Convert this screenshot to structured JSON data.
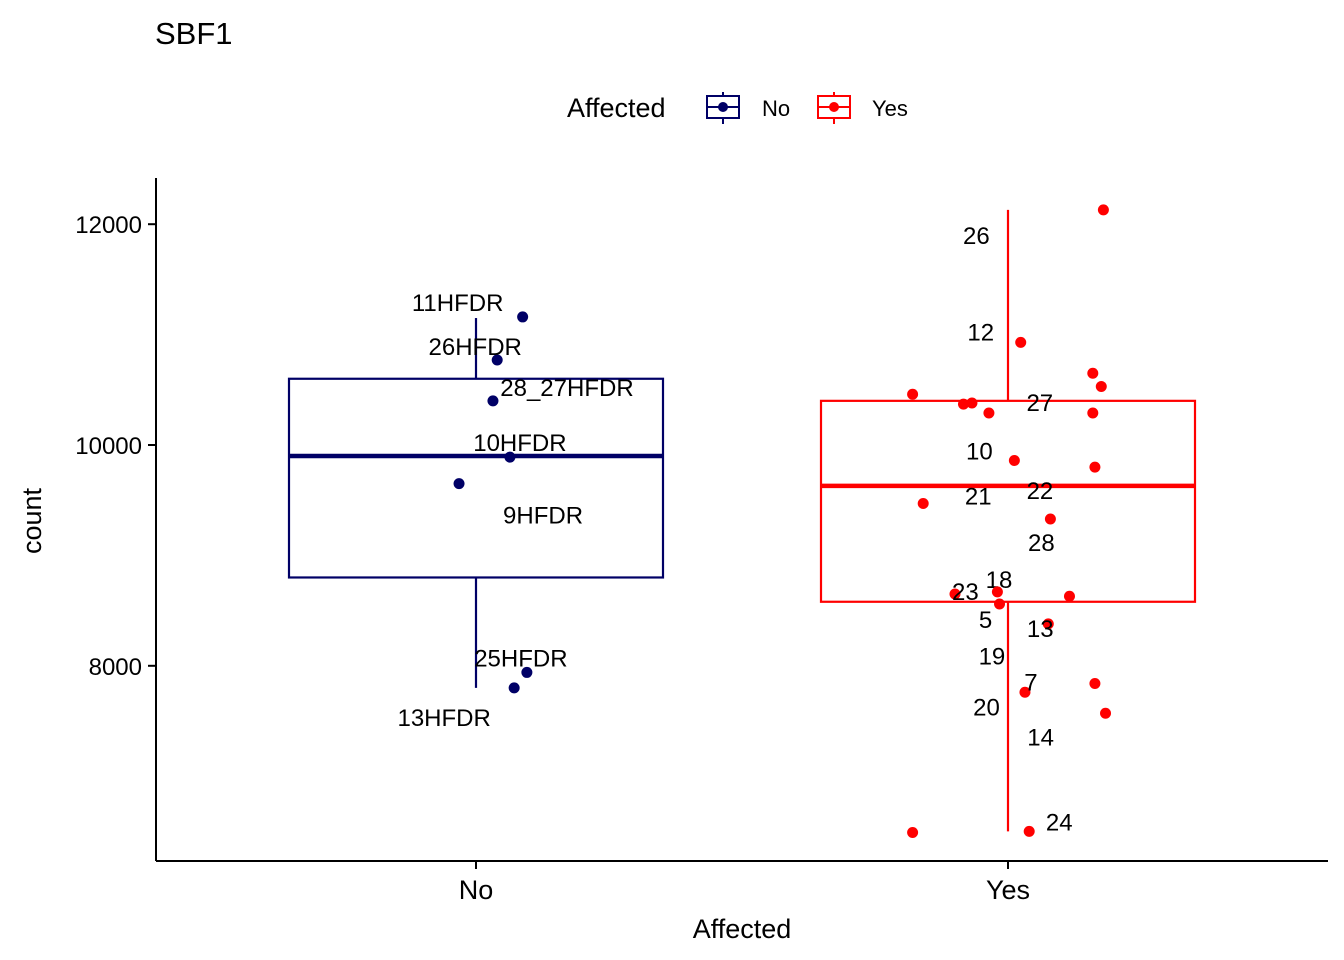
{
  "chart_data": {
    "type": "boxplot",
    "title": "SBF1",
    "xlabel": "Affected",
    "ylabel": "count",
    "ylim": [
      6300,
      12400
    ],
    "yticks": [
      8000,
      10000,
      12000
    ],
    "grid": false,
    "legend": {
      "title": "Affected",
      "placement": "top",
      "entries": [
        {
          "label": "No",
          "color": "#000066"
        },
        {
          "label": "Yes",
          "color": "#ff0000"
        }
      ]
    },
    "categories": [
      "No",
      "Yes"
    ],
    "boxes": [
      {
        "category": "No",
        "color": "#000066",
        "whisker_low": 7800,
        "q1": 8800,
        "median": 9900,
        "q3": 10600,
        "whisker_high": 11150
      },
      {
        "category": "Yes",
        "color": "#ff0000",
        "whisker_low": 6500,
        "q1": 8580,
        "median": 9630,
        "q3": 10400,
        "whisker_high": 12130
      }
    ],
    "points": [
      {
        "category": "No",
        "jitter": 0.1,
        "value": 10770,
        "label": "26HFDR"
      },
      {
        "category": "No",
        "jitter": 0.08,
        "value": 10400,
        "label": "28_27HFDR"
      },
      {
        "category": "No",
        "jitter": 0.22,
        "value": 11160,
        "label": "11HFDR"
      },
      {
        "category": "No",
        "jitter": 0.16,
        "value": 9890,
        "label": "10HFDR"
      },
      {
        "category": "No",
        "jitter": -0.08,
        "value": 9650,
        "label": "9HFDR"
      },
      {
        "category": "No",
        "jitter": 0.24,
        "value": 7940,
        "label": "25HFDR"
      },
      {
        "category": "No",
        "jitter": 0.18,
        "value": 7800,
        "label": "13HFDR"
      },
      {
        "category": "Yes",
        "jitter": 0.45,
        "value": 12130,
        "label": "26"
      },
      {
        "category": "Yes",
        "jitter": 0.06,
        "value": 10930,
        "label": "12"
      },
      {
        "category": "Yes",
        "jitter": 0.4,
        "value": 10650,
        "label": "27"
      },
      {
        "category": "Yes",
        "jitter": 0.44,
        "value": 10530,
        "label": ""
      },
      {
        "category": "Yes",
        "jitter": -0.45,
        "value": 10460,
        "label": ""
      },
      {
        "category": "Yes",
        "jitter": -0.17,
        "value": 10380,
        "label": ""
      },
      {
        "category": "Yes",
        "jitter": -0.21,
        "value": 10370,
        "label": ""
      },
      {
        "category": "Yes",
        "jitter": -0.09,
        "value": 10290,
        "label": ""
      },
      {
        "category": "Yes",
        "jitter": 0.4,
        "value": 10290,
        "label": ""
      },
      {
        "category": "Yes",
        "jitter": 0.03,
        "value": 9860,
        "label": "10"
      },
      {
        "category": "Yes",
        "jitter": 0.41,
        "value": 9800,
        "label": "22"
      },
      {
        "category": "Yes",
        "jitter": -0.4,
        "value": 9470,
        "label": "21"
      },
      {
        "category": "Yes",
        "jitter": 0.2,
        "value": 9330,
        "label": "28"
      },
      {
        "category": "Yes",
        "jitter": -0.25,
        "value": 8650,
        "label": "18"
      },
      {
        "category": "Yes",
        "jitter": -0.05,
        "value": 8670,
        "label": "23"
      },
      {
        "category": "Yes",
        "jitter": 0.29,
        "value": 8630,
        "label": ""
      },
      {
        "category": "Yes",
        "jitter": -0.04,
        "value": 8560,
        "label": "5"
      },
      {
        "category": "Yes",
        "jitter": 0.19,
        "value": 8380,
        "label": "13"
      },
      {
        "category": "Yes",
        "jitter": 0.41,
        "value": 7840,
        "label": "19"
      },
      {
        "category": "Yes",
        "jitter": 0.08,
        "value": 7760,
        "label": "7"
      },
      {
        "category": "Yes",
        "jitter": 0.46,
        "value": 7570,
        "label": "20"
      },
      {
        "category": "Yes",
        "jitter": -0.45,
        "value": 6490,
        "label": "14"
      },
      {
        "category": "Yes",
        "jitter": 0.1,
        "value": 6500,
        "label": "24"
      }
    ]
  }
}
